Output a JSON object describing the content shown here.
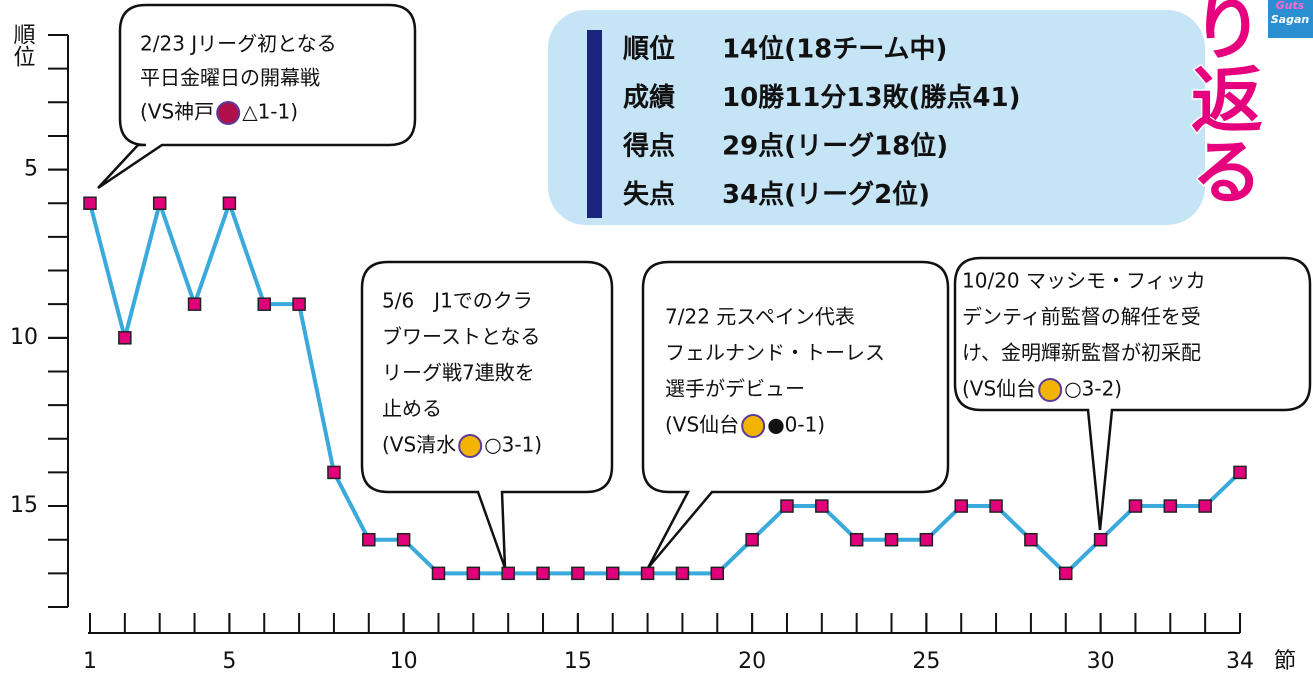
{
  "chart_data": {
    "type": "line",
    "y_label": "順位",
    "x_label": "節",
    "x": [
      1,
      2,
      3,
      4,
      5,
      6,
      7,
      8,
      9,
      10,
      11,
      12,
      13,
      14,
      15,
      16,
      17,
      18,
      19,
      20,
      21,
      22,
      23,
      24,
      25,
      26,
      27,
      28,
      29,
      30,
      31,
      32,
      33,
      34
    ],
    "series": [
      {
        "color": "#3aa9dc",
        "marker_color": "#e0007a",
        "values": [
          6,
          10,
          6,
          9,
          6,
          9,
          9,
          14,
          16,
          16,
          17,
          17,
          17,
          17,
          17,
          17,
          17,
          17,
          17,
          16,
          15,
          15,
          16,
          16,
          16,
          15,
          15,
          16,
          17,
          16,
          15,
          15,
          15,
          14
        ]
      }
    ],
    "xlim": [
      1,
      34
    ],
    "xticks": [
      1,
      5,
      10,
      15,
      20,
      25,
      30,
      34
    ],
    "ylim": [
      1,
      18
    ],
    "yticks": [
      5,
      10,
      15
    ],
    "y_inverted": true,
    "annotations": [
      {
        "lines": [
          "2/23 Jリーグ初となる",
          "平日金曜日の開幕戦"
        ],
        "team": "(VS神戸",
        "result": "△1-1)"
      },
      {
        "lines": [
          "5/6　J1でのクラ",
          "ブワーストとなる",
          "リーグ戦7連敗を",
          "止める"
        ],
        "team": "(VS清水",
        "result": "○3-1)"
      },
      {
        "lines": [
          "7/22 元スペイン代表",
          "フェルナンド・トーレス",
          "選手がデビュー"
        ],
        "team": "(VS仙台",
        "result": "●0-1)"
      },
      {
        "lines": [
          "10/20 マッシモ・フィッカ",
          "デンティ前監督の解任を受",
          "け、金明輝新監督が初采配"
        ],
        "team": "(VS仙台",
        "result": "○3-2)"
      }
    ],
    "summary": [
      {
        "label": "順位",
        "value": "14位(18チーム中)"
      },
      {
        "label": "成績",
        "value": "10勝11分13敗(勝点41)"
      },
      {
        "label": "得点",
        "value": "29点(リーグ18位)"
      },
      {
        "label": "失点",
        "value": "34点(リーグ2位)"
      }
    ],
    "heading": "り返る",
    "logo": [
      "Guts",
      "Sagan"
    ]
  }
}
